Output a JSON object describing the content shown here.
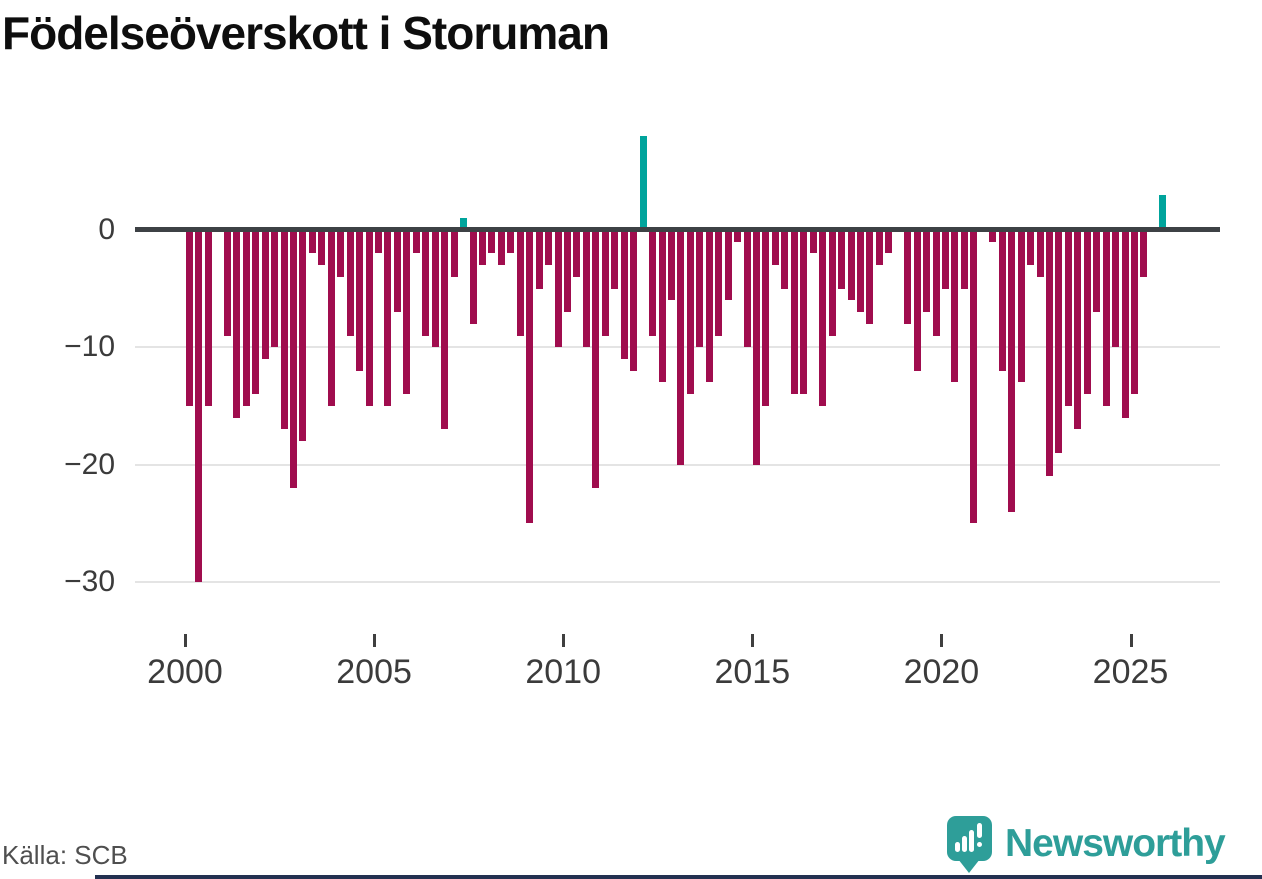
{
  "title": "Födelseöverskott i Storuman",
  "source": "Källa: SCB",
  "brand": {
    "name": "Newsworthy"
  },
  "colors": {
    "negative_bar": "#a00d4e",
    "positive_bar": "#00a49c",
    "zero_line": "#3d4145",
    "gridline": "#e4e4e4",
    "axis_text": "#3b3b3b",
    "source_text": "#4f4f4f",
    "brand_teal": "#2e9e99",
    "footer_rule": "#233050"
  },
  "chart_data": {
    "type": "bar",
    "title": "Födelseöverskott i Storuman",
    "xlabel": "",
    "ylabel": "",
    "resolution": "quarterly",
    "start": "2000-Q1",
    "end": "2025-Q4",
    "ylim": [
      -31,
      9
    ],
    "grid": true,
    "y_ticks": [
      0,
      -10,
      -20,
      -30
    ],
    "y_tick_labels": [
      "0",
      "−10",
      "−20",
      "−30"
    ],
    "x_tick_years": [
      2000,
      2005,
      2010,
      2015,
      2020,
      2025
    ],
    "x_tick_labels": [
      "2000",
      "2005",
      "2010",
      "2015",
      "2020",
      "2025"
    ],
    "values": [
      -15,
      -30,
      -15,
      0,
      -9,
      -16,
      -15,
      -14,
      -11,
      -10,
      -17,
      -22,
      -18,
      -2,
      -3,
      -15,
      -4,
      -9,
      -12,
      -15,
      -2,
      -15,
      -7,
      -14,
      -2,
      -9,
      -10,
      -17,
      -4,
      1,
      -8,
      -3,
      -2,
      -3,
      -2,
      -9,
      -25,
      -5,
      -3,
      -10,
      -7,
      -4,
      -10,
      -22,
      -9,
      -5,
      -11,
      -12,
      8,
      -9,
      -13,
      -6,
      -20,
      -14,
      -10,
      -13,
      -9,
      -6,
      -1,
      -10,
      -20,
      -15,
      -3,
      -5,
      -14,
      -14,
      -2,
      -15,
      -9,
      -5,
      -6,
      -7,
      -8,
      -3,
      -2,
      0,
      -8,
      -12,
      -7,
      -9,
      -5,
      -13,
      -5,
      -25,
      0,
      -1,
      -12,
      -24,
      -13,
      -3,
      -4,
      -21,
      -19,
      -15,
      -17,
      -14,
      -7,
      -15,
      -10,
      -16,
      -14,
      -4,
      0,
      3
    ]
  }
}
